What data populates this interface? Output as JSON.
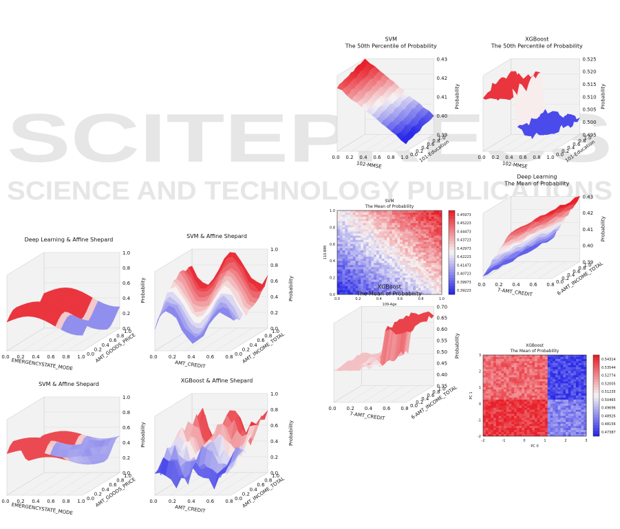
{
  "watermark": {
    "line1": "SCITEPRESS",
    "line2": "SCIENCE AND TECHNOLOGY PUBLICATIONS"
  },
  "colors": {
    "red": "#e8202a",
    "white": "#f7f3f3",
    "blue": "#2a2ae8",
    "pane": "#f2f2f2"
  },
  "chart_data": [
    {
      "id": "svm-50",
      "type": "surface3d",
      "title": "SVM",
      "subtitle": "The 50th Percentile of Probability",
      "xlabel": "102-MMSE",
      "ylabel": "101-Education",
      "zlabel": "Probability",
      "xticks": [
        "0.0",
        "0.2",
        "0.4",
        "0.6",
        "0.8",
        "1.0"
      ],
      "yticks": [
        "0.0",
        "0.2",
        "0.4",
        "0.6",
        "0.8",
        "1.0"
      ],
      "zticks": [
        "0.39",
        "0.40",
        "0.41",
        "0.42",
        "0.43"
      ],
      "zlim": [
        0.385,
        0.432
      ]
    },
    {
      "id": "xgb-50",
      "type": "surface3d",
      "title": "XGBoost",
      "subtitle": "The 50th Percentile of Probability",
      "xlabel": "102-MMSE",
      "ylabel": "101-Education",
      "zlabel": "Probability",
      "xticks": [
        "0.0",
        "0.2",
        "0.4",
        "0.6",
        "0.8",
        "1.0"
      ],
      "yticks": [
        "0.0",
        "0.2",
        "0.4",
        "0.6",
        "0.8",
        "1.0"
      ],
      "zticks": [
        "0.495",
        "0.500",
        "0.505",
        "0.510",
        "0.515",
        "0.520",
        "0.525"
      ],
      "zlim": [
        0.492,
        0.527
      ]
    },
    {
      "id": "svm-mean",
      "type": "heatmap",
      "title": "SVM",
      "subtitle": "The Mean of Probability",
      "xlabel": "109-Age",
      "ylabel": "110-BMI",
      "xticks": [
        "0.0",
        "0.2",
        "0.4",
        "0.6",
        "0.8",
        "1.0"
      ],
      "yticks": [
        "0.0",
        "0.2",
        "0.4",
        "0.6",
        "0.8",
        "1.0"
      ],
      "colorbar": [
        "0.45973",
        "0.45223",
        "0.44473",
        "0.43723",
        "0.42973",
        "0.42223",
        "0.41473",
        "0.40723",
        "0.39973",
        "0.39223"
      ]
    },
    {
      "id": "dl-mean",
      "type": "surface3d",
      "title": "Deep Learning",
      "subtitle": "The Mean of Probability",
      "xlabel": "7-AMT_CREDIT",
      "ylabel": "6-AMT_INCOME_TOTAL",
      "zlabel": "Probability",
      "xticks": [
        "0.0",
        "0.2",
        "0.4",
        "0.6",
        "0.8"
      ],
      "yticks": [
        "0.0",
        "0.2",
        "0.4",
        "0.6",
        "0.8",
        "1.0"
      ],
      "zticks": [
        "0.39",
        "0.40",
        "0.41",
        "0.42",
        "0.43"
      ],
      "zlim": [
        0.385,
        0.435
      ]
    },
    {
      "id": "xgb-mean-3d",
      "type": "surface3d",
      "title": "XGBoost",
      "subtitle": "The Mean of Probability",
      "xlabel": "7-AMT_CREDIT",
      "ylabel": "6-AMT_INCOME_TOTAL",
      "zlabel": "Probability",
      "xticks": [
        "0.0",
        "0.2",
        "0.4",
        "0.6",
        "0.8"
      ],
      "yticks": [
        "0.0",
        "0.2",
        "0.4",
        "0.6",
        "0.8",
        "1.0"
      ],
      "zticks": [
        "0.35",
        "0.40",
        "0.45",
        "0.50",
        "0.55",
        "0.60",
        "0.65",
        "0.70"
      ],
      "zlim": [
        0.32,
        0.72
      ]
    },
    {
      "id": "xgb-mean-pc",
      "type": "heatmap",
      "title": "XGBoost",
      "subtitle": "The Mean of Probability",
      "xlabel": "PC 0",
      "ylabel": "PC 1",
      "xticks": [
        "-2",
        "-1",
        "0",
        "1",
        "2",
        "3"
      ],
      "yticks": [
        "-2",
        "-1",
        "0",
        "1",
        "2",
        "3"
      ],
      "colorbar": [
        "0.54314",
        "0.53544",
        "0.52774",
        "0.52005",
        "0.51235",
        "0.50465",
        "0.49696",
        "0.48926",
        "0.48156",
        "0.47387"
      ]
    },
    {
      "id": "dl-affine",
      "type": "surface3d",
      "title": "Deep Learning & Affine Shepard",
      "subtitle": "",
      "xlabel": "EMERGENCYSTATE_MODE",
      "ylabel": "AMT_GOODS_PRICE",
      "zlabel": "Probability",
      "xticks": [
        "0.0",
        "0.2",
        "0.4",
        "0.6",
        "0.8",
        "1.0"
      ],
      "yticks": [
        "0.0",
        "0.2",
        "0.4",
        "0.6",
        "0.8",
        "1.0"
      ],
      "zticks": [
        "0.0",
        "0.2",
        "0.4",
        "0.6",
        "0.8",
        "1.0"
      ],
      "zlim": [
        0,
        1
      ]
    },
    {
      "id": "svm-affine-credit",
      "type": "surface3d",
      "title": "SVM & Affine Shepard",
      "subtitle": "",
      "xlabel": "AMT_CREDIT",
      "ylabel": "AMT_INCOME_TOTAL",
      "zlabel": "Probability",
      "xticks": [
        "0.0",
        "0.2",
        "0.4",
        "0.6",
        "0.8"
      ],
      "yticks": [
        "0.0",
        "0.2",
        "0.4",
        "0.6",
        "0.8",
        "1.0"
      ],
      "zticks": [
        "0.0",
        "0.2",
        "0.4",
        "0.6",
        "0.8",
        "1.0"
      ],
      "zlim": [
        0,
        1
      ]
    },
    {
      "id": "svm-affine-emerg",
      "type": "surface3d",
      "title": "SVM & Affine Shepard",
      "subtitle": "",
      "xlabel": "EMERGENCYSTATE_MODE",
      "ylabel": "AMT_GOODS_PRICE",
      "zlabel": "Probability",
      "xticks": [
        "0.0",
        "0.2",
        "0.4",
        "0.6",
        "0.8",
        "1.0"
      ],
      "yticks": [
        "0.0",
        "0.2",
        "0.4",
        "0.6",
        "0.8",
        "1.0"
      ],
      "zticks": [
        "0.0",
        "0.2",
        "0.4",
        "0.6",
        "0.8",
        "1.0"
      ],
      "zlim": [
        0,
        1
      ]
    },
    {
      "id": "xgb-affine",
      "type": "surface3d",
      "title": "XGBoost & Affine Shepard",
      "subtitle": "",
      "xlabel": "AMT_CREDIT",
      "ylabel": "AMT_INCOME_TOTAL",
      "zlabel": "Probability",
      "xticks": [
        "0.0",
        "0.2",
        "0.4",
        "0.6",
        "0.8"
      ],
      "yticks": [
        "0.0",
        "0.2",
        "0.4",
        "0.6",
        "0.8",
        "1.0"
      ],
      "zticks": [
        "0.0",
        "0.2",
        "0.4",
        "0.6",
        "0.8",
        "1.0"
      ],
      "zlim": [
        0,
        1
      ]
    }
  ]
}
